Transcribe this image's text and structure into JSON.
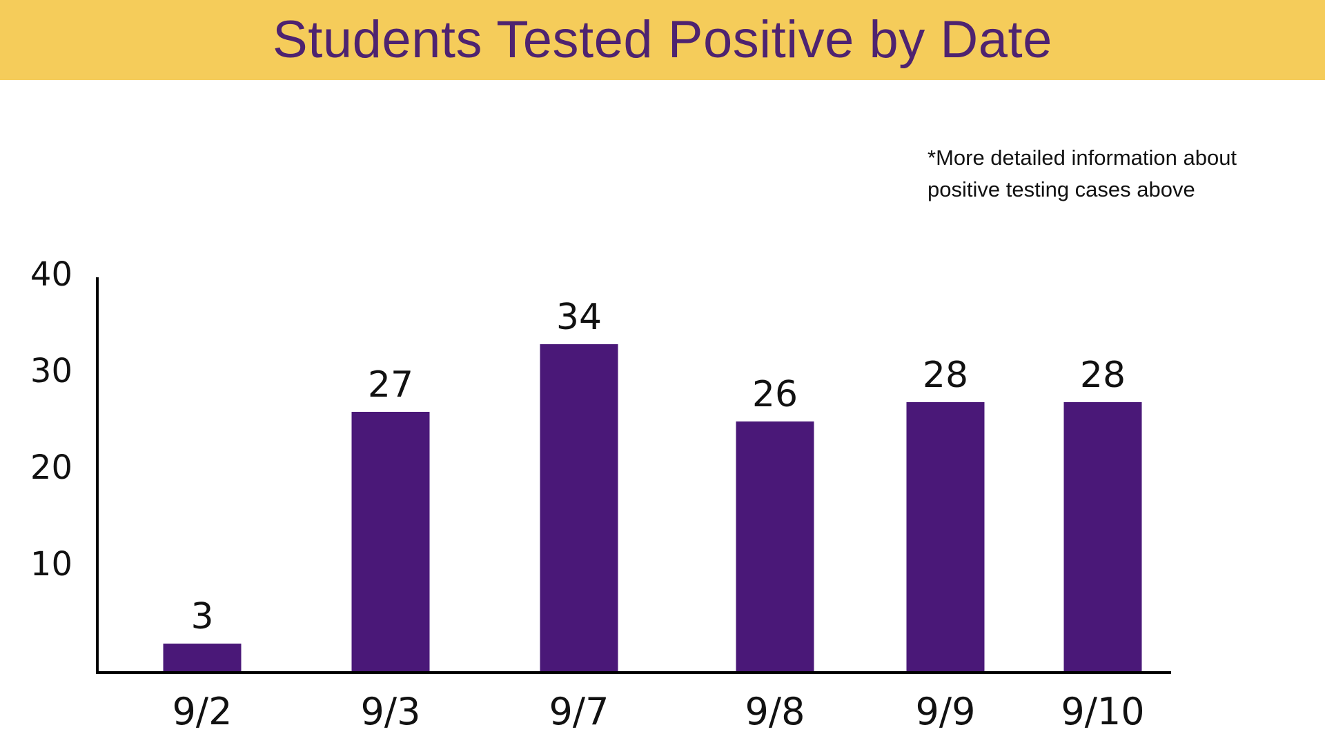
{
  "colors": {
    "banner": "#F5CC5A",
    "title_text": "#4E2370",
    "bar": "#4A1878",
    "axis": "#000000"
  },
  "footnote": {
    "line1": "*More detailed information about",
    "line2": "positive testing cases above"
  },
  "chart_data": {
    "type": "bar",
    "title": "Students Tested Positive by Date",
    "xlabel": "",
    "ylabel": "",
    "categories": [
      "9/2",
      "9/3",
      "9/7",
      "9/8",
      "9/9",
      "9/10"
    ],
    "values": [
      3,
      27,
      34,
      26,
      28,
      28
    ],
    "data_labels": [
      "3",
      "27",
      "34",
      "26",
      "28",
      "28"
    ],
    "y_ticks": [
      10,
      20,
      30,
      40
    ],
    "ylim": [
      0,
      40
    ],
    "grid": false,
    "legend": "none"
  }
}
